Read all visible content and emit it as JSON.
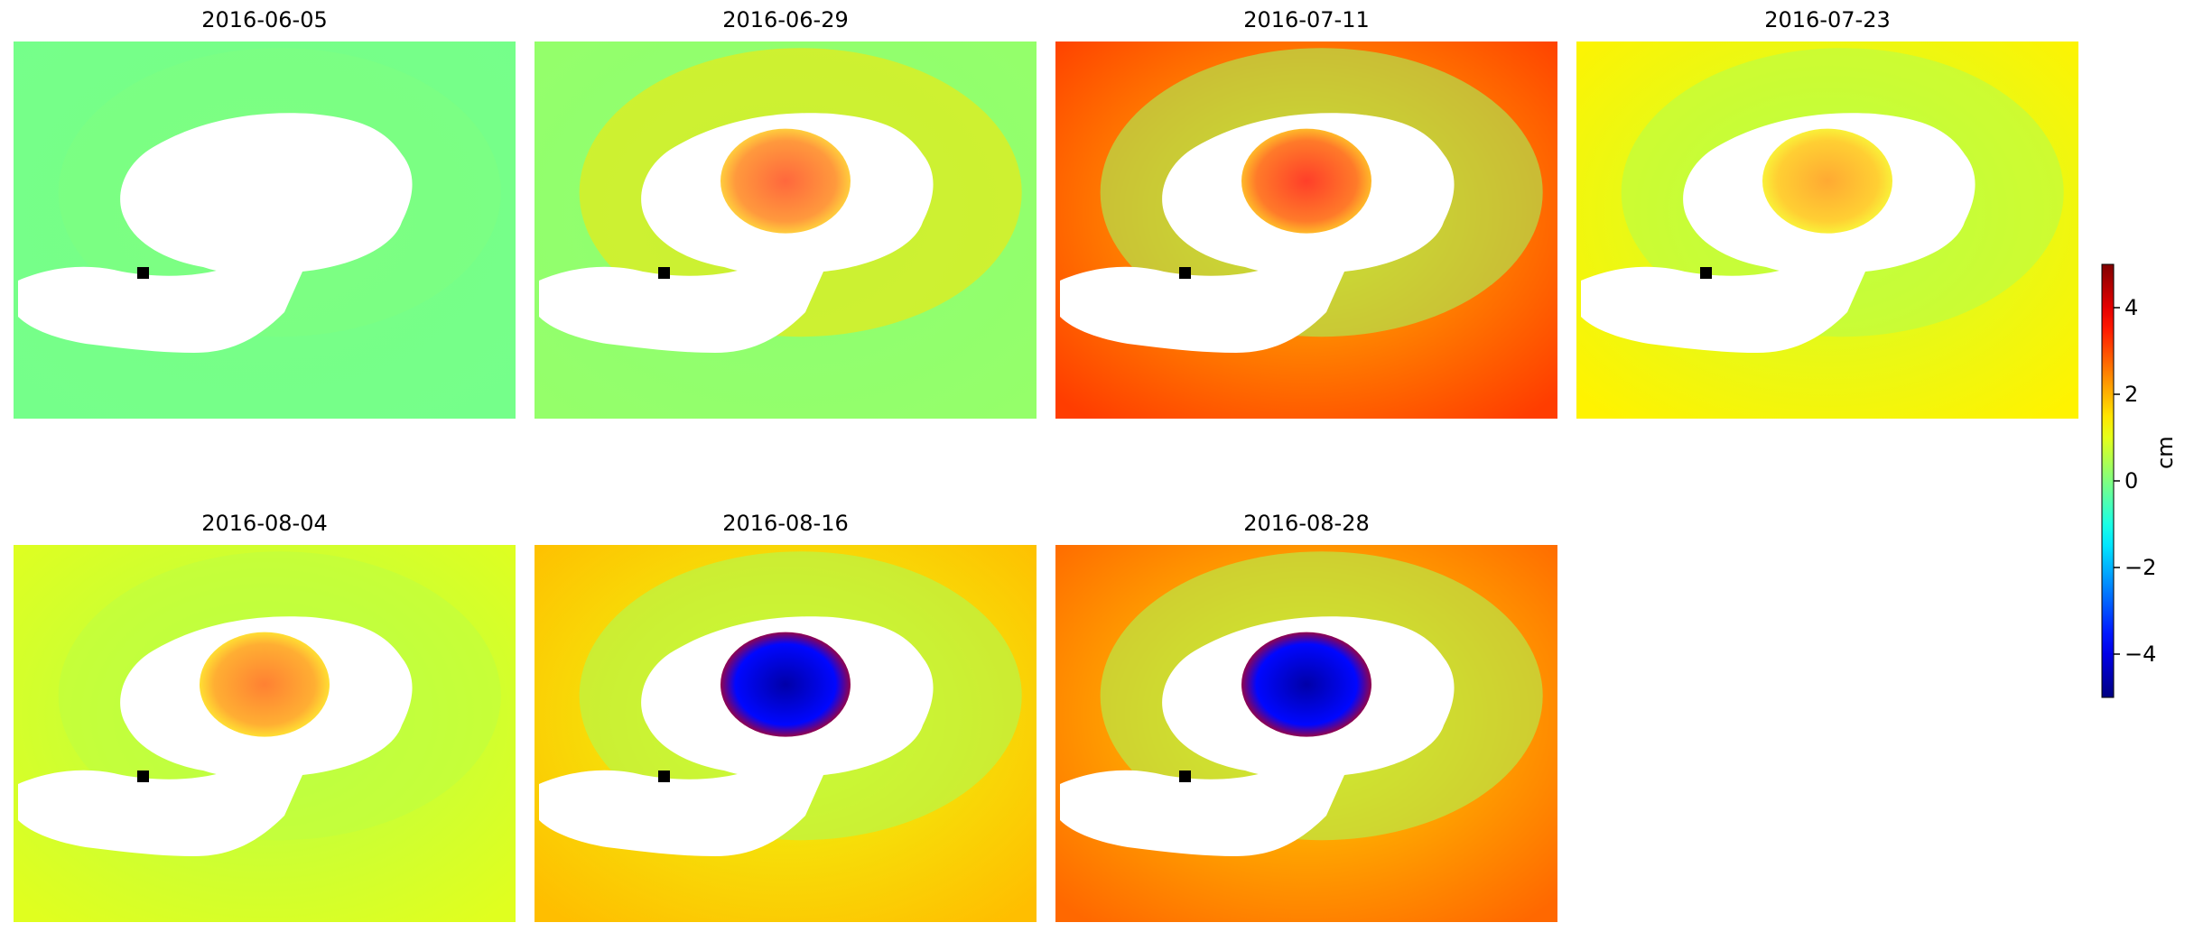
{
  "chart_data": {
    "type": "heatmap",
    "panels": [
      {
        "date": "2016-06-05",
        "background": -0.1,
        "ring": 0.0,
        "core": 0.0,
        "intensity": 0.0
      },
      {
        "date": "2016-06-29",
        "background": 0.2,
        "ring": 1.5,
        "core": 3.2,
        "intensity": 0.4
      },
      {
        "date": "2016-07-11",
        "background": 3.0,
        "ring": 0.3,
        "core": 3.5,
        "intensity": 0.6
      },
      {
        "date": "2016-07-23",
        "background": 1.3,
        "ring": 0.5,
        "core": 2.3,
        "intensity": 0.5
      },
      {
        "date": "2016-08-04",
        "background": 0.9,
        "ring": 0.6,
        "core": 2.8,
        "intensity": 0.5
      },
      {
        "date": "2016-08-16",
        "background": 1.8,
        "ring": 0.4,
        "core": -4.6,
        "intensity": 1.0
      },
      {
        "date": "2016-08-28",
        "background": 2.6,
        "ring": 0.4,
        "core": -4.6,
        "intensity": 1.0
      }
    ],
    "colorbar": {
      "colormap": "jet",
      "vmin": -5,
      "vmax": 5,
      "ticks": [
        -4,
        -2,
        0,
        2,
        4
      ],
      "tick_labels": [
        "−4",
        "−2",
        "0",
        "2",
        "4"
      ],
      "label": "cm"
    },
    "reference_marker": {
      "color": "#000000",
      "shape": "square"
    },
    "mask_color": "#ffffff"
  }
}
